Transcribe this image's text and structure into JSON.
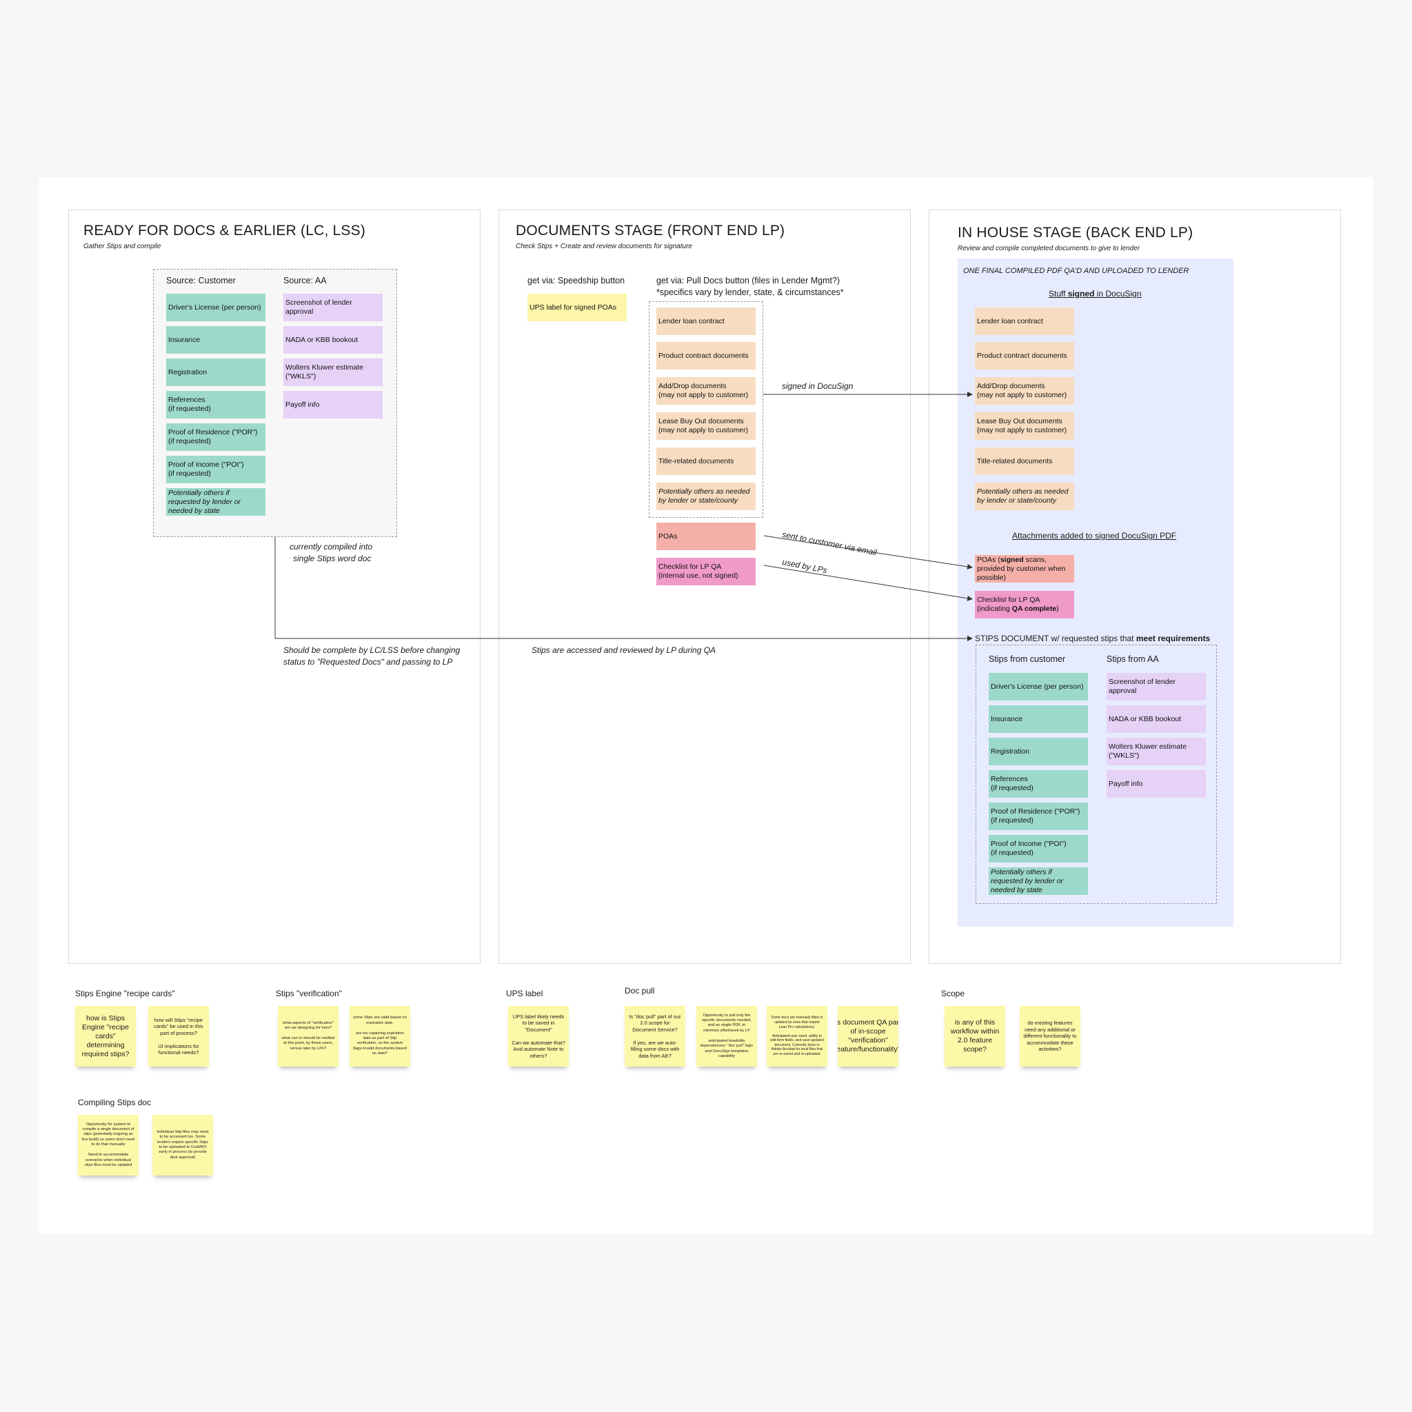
{
  "frames": {
    "ready": {
      "title": "READY FOR DOCS & EARLIER (LC, LSS)",
      "subtitle": "Gather Stips and compile",
      "source_customer_label": "Source: Customer",
      "source_aa_label": "Source: AA",
      "customer_stips": [
        "Driver's License (per person)",
        "Insurance",
        "Registration",
        "References\n(if requested)",
        "Proof of Residence (\"POR\")\n(if requested)",
        "Proof of Income (\"POI\")\n(if requested)",
        "Potentially others if requested by lender or needed by state"
      ],
      "aa_stips": [
        "Screenshot of lender approval",
        "NADA or KBB bookout",
        "Wolters Kluwer estimate (\"WKLS\")",
        "Payoff info"
      ],
      "compiled_note_1": "currently compiled into",
      "compiled_note_2": "single Stips word doc",
      "complete_note_1": "Should be complete by LC/LSS before changing",
      "complete_note_2": "status to \"Requested Docs\" and passing to LP"
    },
    "documents": {
      "title": "DOCUMENTS STAGE (FRONT END LP)",
      "subtitle": "Check Stips + Create and review documents for signature",
      "speedship_label": "get via: Speedship button",
      "ups_note": "UPS label for signed POAs",
      "pull_docs_label_1": "get via: Pull Docs button (files in Lender Mgmt?)",
      "pull_docs_label_2": "*specifics vary by lender, state, & circumstances*",
      "docs": [
        "Lender loan contract",
        "Product contract documents",
        "Add/Drop documents\n(may not apply to customer)",
        "Lease Buy Out documents\n(may not apply to customer)",
        "Title-related documents",
        "Potentially others as needed by lender or state/county"
      ],
      "poas": "POAs",
      "checklist_1": "Checklist for LP QA",
      "checklist_2": "(internal use, not signed)",
      "signed_in_docusign": "signed in DocuSign",
      "sent_to_customer": "sent to customer via email",
      "used_by_lps": "used by LPs",
      "stips_accessed": "Stips are accessed and reviewed by LP during QA"
    },
    "inhouse": {
      "title": "IN HOUSE STAGE (BACK END LP)",
      "subtitle": "Review and compile completed documents to give to lender",
      "final_pdf": "ONE FINAL COMPILED PDF QA'D AND UPLOADED TO LENDER",
      "stuff_signed_pre": "Stuff ",
      "stuff_signed_bold": "signed",
      "stuff_signed_post": " in DocuSign",
      "docs": [
        "Lender loan contract",
        "Product contract documents",
        "Add/Drop documents\n(may not apply to customer)",
        "Lease Buy Out documents\n(may not apply to customer)",
        "Title-related documents",
        "Potentially others as needed by lender or state/county"
      ],
      "attachments_label": "Attachments added to signed DocuSign PDF",
      "poas_pre": "POAs (",
      "poas_bold": "signed",
      "poas_post": " scans, provided by customer when possible)",
      "checklist_1": "Checklist for LP QA",
      "checklist_2_pre": "(indicating ",
      "checklist_2_bold": "QA complete",
      "checklist_2_post": ")",
      "stips_doc_pre": "STIPS DOCUMENT w/ requested stips that ",
      "stips_doc_bold": "meet requirements",
      "stips_from_customer": "Stips from customer",
      "stips_from_aa": "Stips from AA",
      "customer_stips": [
        "Driver's License (per person)",
        "Insurance",
        "Registration",
        "References\n(if requested)",
        "Proof of Residence (\"POR\")\n(if requested)",
        "Proof of Income (\"POI\")\n(if requested)",
        "Potentially others if requested by lender or needed by state"
      ],
      "aa_stips": [
        "Screenshot of lender approval",
        "NADA or KBB bookout",
        "Wolters Kluwer estimate (\"WKLS\")",
        "Payoff info"
      ]
    }
  },
  "sections": {
    "recipe": {
      "title": "Stips Engine \"recipe cards\"",
      "notes": [
        "how is Stips Engine \"recipe cards\" determining required stips?",
        "how will Stips \"recipe cards\" be used in this part of process?\n\nUI implications for functional needs?"
      ]
    },
    "verification": {
      "title": "Stips \"verification\"",
      "notes": [
        "what aspects of \"verification\" are we designing for here?\n\nwhat can or should be verified at this point, by these users, versus later by LPs?",
        "some Stips are valid based on expiration date.\n\nare we capturing expiration date as part of Stip verification, so the system flags invalid documents based on date?"
      ]
    },
    "ups": {
      "title": "UPS label",
      "notes": [
        "UPS label likely needs to be saved in \"Document\"\n\nCan we automate that? And automate Note to others?"
      ]
    },
    "docpull": {
      "title": "Doc pull",
      "notes": [
        "Is \"doc pull\" part of our 2.0 scope for Document Service?\n\nIf yes, are we auto-filling some docs with data from AE?",
        "Opportunity to pull only the specific documents needed, and as single PDF, to minimize effort/work by LP\n\nanticipated feasibility dependencies: \"doc pull\" logic and DocuSign templates capability",
        "Some docs are manually filled or updated (ie ones that require Loan Pro calculations).\n\nAnticipated user need: ability to edit form fields, and save updated document. Currently done in Adobe Acrobat for local files that are re-saved and re-uploaded.",
        "Is document QA part of in-scope \"verification\" feature/functionality?"
      ]
    },
    "scope": {
      "title": "Scope",
      "notes": [
        "is any of this workflow within 2.0 feature scope?",
        "do existing features need any additional or different functionality to accommodate these activities?"
      ]
    },
    "compiling": {
      "title": "Compiling Stips doc",
      "notes": [
        "Opportunity for system to compile a single document of stips (potentially ongoing as live build) so users don't need to do that manually\n\nNeed to accommodate scenarios when individual stips files must be updated",
        "Individual Stip files may need to be accessed too. Some lenders require specific Stips to be uploaded to CudI/RO early in process (to provide deal approval)"
      ]
    }
  }
}
